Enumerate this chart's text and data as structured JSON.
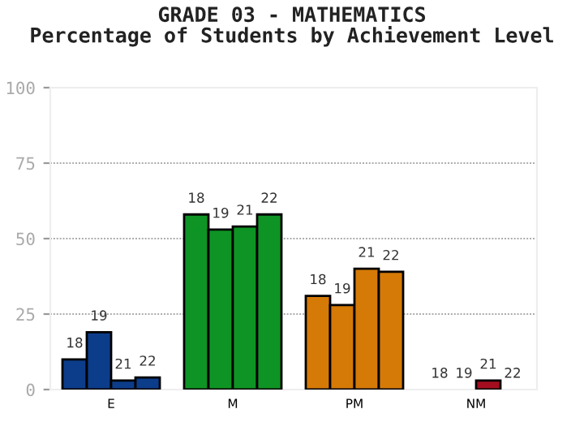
{
  "chart_data": {
    "type": "bar",
    "title": "GRADE 03 - MATHEMATICS\nPercentage of Students by Achievement Level",
    "categories": [
      "E",
      "M",
      "PM",
      "NM"
    ],
    "series": [
      {
        "name": "18",
        "colors": [
          "#0c3d8a",
          "#0e9424",
          "#d57a07",
          "#a50e20"
        ],
        "values": [
          10,
          58,
          31,
          0
        ]
      },
      {
        "name": "19",
        "colors": [
          "#0c3d8a",
          "#0e9424",
          "#d57a07",
          "#a50e20"
        ],
        "values": [
          19,
          53,
          28,
          0
        ]
      },
      {
        "name": "21",
        "colors": [
          "#0c3d8a",
          "#0e9424",
          "#d57a07",
          "#a50e20"
        ],
        "values": [
          3,
          54,
          40,
          3
        ]
      },
      {
        "name": "22",
        "colors": [
          "#0c3d8a",
          "#0e9424",
          "#d57a07",
          "#a50e20"
        ],
        "values": [
          4,
          58,
          39,
          0
        ]
      }
    ],
    "ylim": [
      0,
      100
    ],
    "yticks": [
      0,
      25,
      50,
      75,
      100
    ],
    "grid": "y",
    "legend": false
  }
}
